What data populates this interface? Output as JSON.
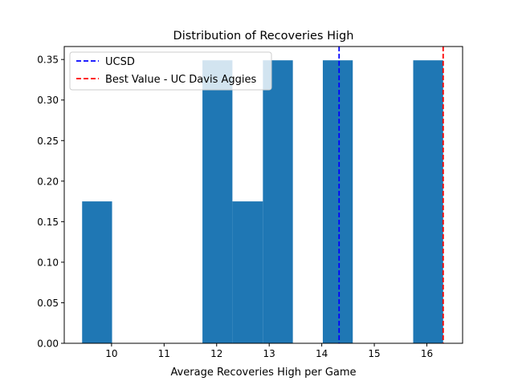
{
  "chart_data": {
    "type": "bar",
    "title": "Distribution of Recoveries High",
    "xlabel": "Average Recoveries High per Game",
    "ylabel": "",
    "xlim": [
      9.1,
      16.68
    ],
    "ylim": [
      0,
      0.366
    ],
    "xticks": [
      10,
      11,
      12,
      13,
      14,
      15,
      16
    ],
    "xtick_labels": [
      "10",
      "11",
      "12",
      "13",
      "14",
      "15",
      "16"
    ],
    "yticks": [
      0.0,
      0.05,
      0.1,
      0.15,
      0.2,
      0.25,
      0.3,
      0.35
    ],
    "ytick_labels": [
      "0.00",
      "0.05",
      "0.10",
      "0.15",
      "0.20",
      "0.25",
      "0.30",
      "0.35"
    ],
    "grid": false,
    "bar_color": "#1f77b4",
    "bins": [
      {
        "x0": 9.44,
        "x1": 10.01,
        "value": 0.175
      },
      {
        "x0": 10.01,
        "x1": 10.59,
        "value": 0.0
      },
      {
        "x0": 10.59,
        "x1": 11.16,
        "value": 0.0
      },
      {
        "x0": 11.16,
        "x1": 11.73,
        "value": 0.0
      },
      {
        "x0": 11.73,
        "x1": 12.3,
        "value": 0.349
      },
      {
        "x0": 12.3,
        "x1": 12.88,
        "value": 0.175
      },
      {
        "x0": 12.88,
        "x1": 13.45,
        "value": 0.349
      },
      {
        "x0": 13.45,
        "x1": 14.02,
        "value": 0.0
      },
      {
        "x0": 14.02,
        "x1": 14.59,
        "value": 0.349
      },
      {
        "x0": 14.59,
        "x1": 15.17,
        "value": 0.0
      },
      {
        "x0": 15.17,
        "x1": 15.74,
        "value": 0.0
      },
      {
        "x0": 15.74,
        "x1": 16.31,
        "value": 0.349
      }
    ],
    "vlines": [
      {
        "label": "UCSD",
        "x": 14.33,
        "color": "#0000ff"
      },
      {
        "label": "Best Value - UC Davis Aggies",
        "x": 16.31,
        "color": "#ff0000"
      }
    ],
    "legend_position": "top-left"
  }
}
